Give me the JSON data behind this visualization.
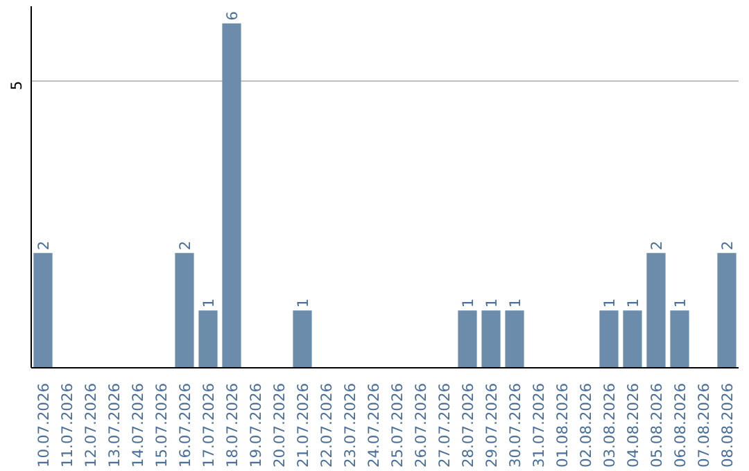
{
  "chart_data": {
    "type": "bar",
    "categories": [
      "10.07.2026",
      "11.07.2026",
      "12.07.2026",
      "13.07.2026",
      "14.07.2026",
      "15.07.2026",
      "16.07.2026",
      "17.07.2026",
      "18.07.2026",
      "19.07.2026",
      "20.07.2026",
      "21.07.2026",
      "22.07.2026",
      "23.07.2026",
      "24.07.2026",
      "25.07.2026",
      "26.07.2026",
      "27.07.2026",
      "28.07.2026",
      "29.07.2026",
      "30.07.2026",
      "31.07.2026",
      "01.08.2026",
      "02.08.2026",
      "03.08.2026",
      "04.08.2026",
      "05.08.2026",
      "06.08.2026",
      "07.08.2026",
      "08.08.2026"
    ],
    "values": [
      2,
      0,
      0,
      0,
      0,
      0,
      2,
      1,
      6,
      0,
      0,
      1,
      0,
      0,
      0,
      0,
      0,
      0,
      1,
      1,
      1,
      0,
      0,
      0,
      1,
      1,
      2,
      1,
      0,
      2
    ],
    "value_labels": [
      "2",
      null,
      null,
      null,
      null,
      null,
      "2",
      "1",
      "6",
      null,
      null,
      "1",
      null,
      null,
      null,
      null,
      null,
      null,
      "1",
      "1",
      "1",
      null,
      null,
      null,
      "1",
      "1",
      "2",
      "1",
      null,
      "2"
    ],
    "color": "#6b8cab",
    "ylim": [
      0,
      6.3
    ],
    "yticks": [
      5
    ],
    "grid": "y"
  }
}
